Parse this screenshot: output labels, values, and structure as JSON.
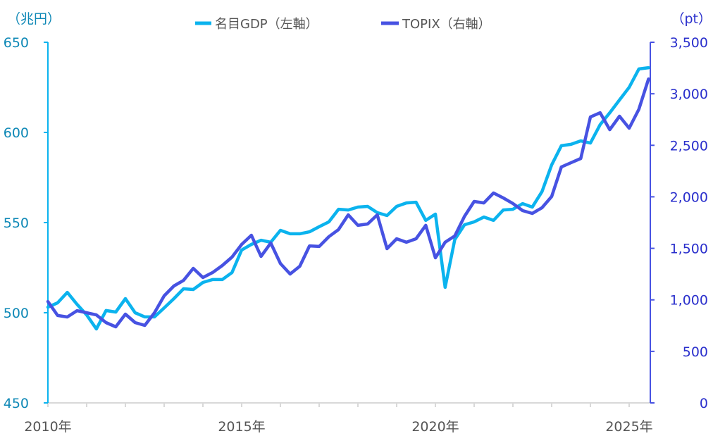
{
  "chart_data": {
    "type": "line",
    "title": "",
    "legend": [
      "名目GDP（左軸）",
      "TOPIX（右軸）"
    ],
    "legend_position": "top-center",
    "left_axis": {
      "unit_label": "（兆円）",
      "ylim": [
        450,
        650
      ],
      "ticks": [
        450,
        500,
        550,
        600,
        650
      ],
      "tick_labels": [
        "450",
        "500",
        "550",
        "600",
        "650"
      ]
    },
    "right_axis": {
      "unit_label": "（pt）",
      "ylim": [
        0,
        3500
      ],
      "ticks": [
        0,
        500,
        1000,
        1500,
        2000,
        2500,
        3000,
        3500
      ],
      "tick_labels": [
        "0",
        "500",
        "1,000",
        "1,500",
        "2,000",
        "2,500",
        "3,000",
        "3,500"
      ]
    },
    "x_axis": {
      "start": 2010.0,
      "step": 0.25,
      "xlim": [
        2010,
        2025.6
      ],
      "tick_years": [
        2010,
        2011,
        2012,
        2013,
        2014,
        2015,
        2016,
        2017,
        2018,
        2019,
        2020,
        2021,
        2022,
        2023,
        2024,
        2025
      ],
      "labels": [
        {
          "year": 2010,
          "text": "2010年"
        },
        {
          "year": 2015,
          "text": "2015年"
        },
        {
          "year": 2020,
          "text": "2020年"
        },
        {
          "year": 2025,
          "text": "2025年"
        }
      ]
    },
    "series": [
      {
        "name": "名目GDP（左軸）",
        "axis": "left",
        "color": "#0bb3ee",
        "values": [
          503.1,
          505.5,
          511.3,
          504.7,
          498.8,
          491.0,
          501.2,
          500.4,
          507.8,
          500.0,
          497.7,
          497.7,
          502.7,
          507.8,
          513.3,
          512.9,
          516.8,
          518.4,
          518.4,
          522.3,
          534.8,
          537.9,
          540.2,
          539.1,
          545.7,
          543.8,
          543.8,
          544.9,
          547.7,
          550.4,
          557.4,
          557.0,
          558.6,
          559.0,
          555.5,
          553.9,
          559.0,
          560.9,
          561.3,
          551.2,
          554.7,
          514.1,
          540.6,
          548.8,
          550.4,
          553.1,
          551.2,
          557.0,
          557.4,
          560.5,
          558.6,
          567.2,
          582.0,
          592.6,
          593.4,
          595.3,
          594.1,
          604.3,
          610.9,
          618.0,
          625.0,
          635.2,
          635.9
        ]
      },
      {
        "name": "TOPIX（右軸）",
        "axis": "right",
        "color": "#4752e2",
        "values": [
          984,
          848,
          834,
          895,
          875,
          854,
          779,
          738,
          861,
          779,
          752,
          875,
          1039,
          1135,
          1189,
          1306,
          1217,
          1265,
          1333,
          1415,
          1538,
          1627,
          1422,
          1552,
          1353,
          1251,
          1326,
          1524,
          1518,
          1613,
          1682,
          1825,
          1723,
          1736,
          1825,
          1497,
          1593,
          1559,
          1593,
          1723,
          1408,
          1559,
          1620,
          1811,
          1955,
          1941,
          2037,
          1989,
          1935,
          1866,
          1839,
          1894,
          2003,
          2290,
          2331,
          2372,
          2775,
          2816,
          2652,
          2782,
          2666,
          2850,
          3144
        ]
      }
    ]
  }
}
